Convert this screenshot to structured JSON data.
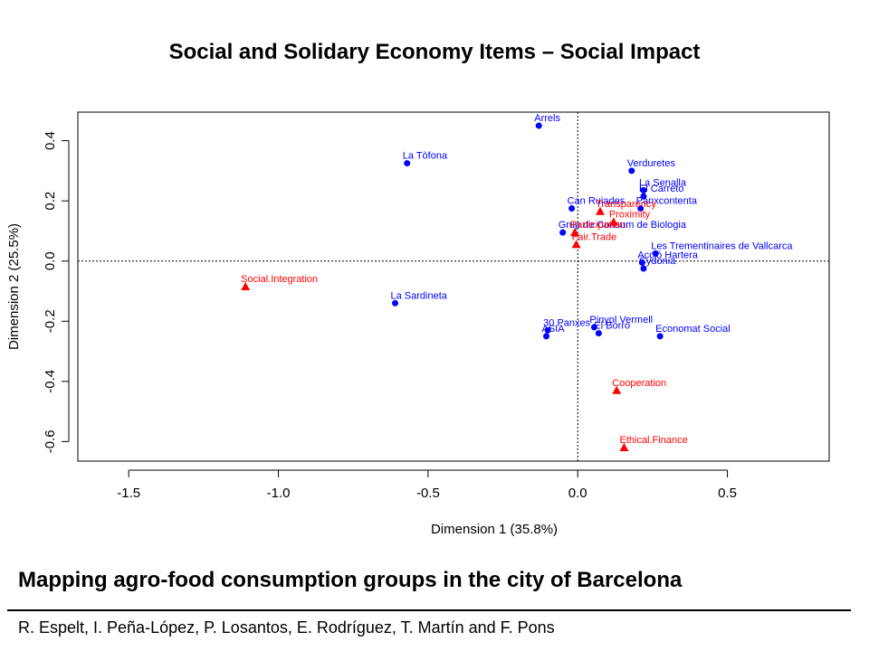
{
  "slide": {
    "title": "Social and Solidary Economy Items – Social Impact",
    "subtitle": "Mapping agro-food consumption groups in the city of Barcelona",
    "authors": "R. Espelt, I. Peña-López, P. Losantos, E. Rodríguez, T. Martín and F. Pons"
  },
  "chart_data": {
    "type": "scatter",
    "title": "",
    "xlabel": "Dimension 1 (35.8%)",
    "ylabel": "Dimension 2 (25.5%)",
    "xlim": [
      -1.67,
      0.84
    ],
    "ylim": [
      -0.665,
      0.495
    ],
    "x_ticks": [
      -1.5,
      -1.0,
      -0.5,
      0.0,
      0.5
    ],
    "y_ticks": [
      -0.6,
      -0.4,
      -0.2,
      0.0,
      0.2,
      0.4
    ],
    "x_tick_labels": [
      "-1.5",
      "-1.0",
      "-0.5",
      "0.0",
      "0.5"
    ],
    "y_tick_labels": [
      "-0.6",
      "-0.4",
      "-0.2",
      "0.0",
      "0.2",
      "0.4"
    ],
    "reference_lines": {
      "x": 0,
      "y": 0,
      "style": "dotted"
    },
    "grid": false,
    "colors": {
      "groups": "#0000ff",
      "items": "#ff0000"
    },
    "series": [
      {
        "marker": "circle",
        "color": "#0000ff",
        "points": [
          {
            "label": "Arrels",
            "x": -0.13,
            "y": 0.45
          },
          {
            "label": "La Tòfona",
            "x": -0.57,
            "y": 0.325
          },
          {
            "label": "Verduretes",
            "x": 0.18,
            "y": 0.3
          },
          {
            "label": "La Senalla",
            "x": 0.22,
            "y": 0.235
          },
          {
            "label": "El Carreto",
            "x": 0.22,
            "y": 0.215
          },
          {
            "label": "Can Ruiades",
            "x": -0.02,
            "y": 0.175
          },
          {
            "label": "Panxcontenta",
            "x": 0.21,
            "y": 0.175
          },
          {
            "label": "Grup de Consum de Biologia",
            "x": -0.05,
            "y": 0.095
          },
          {
            "label": "Les Trementinaires de Vallcarca",
            "x": 0.26,
            "y": 0.025
          },
          {
            "label": "Acció Hartera",
            "x": 0.215,
            "y": -0.005
          },
          {
            "label": "Cydonia",
            "x": 0.22,
            "y": -0.025
          },
          {
            "label": "La Sardineta",
            "x": -0.61,
            "y": -0.14
          },
          {
            "label": "30 Panxes",
            "x": -0.1,
            "y": -0.23
          },
          {
            "label": "ASIA",
            "x": -0.105,
            "y": -0.25
          },
          {
            "label": "Pinyol Vermell",
            "x": 0.055,
            "y": -0.22
          },
          {
            "label": "El Borro",
            "x": 0.07,
            "y": -0.24
          },
          {
            "label": "Economat Social",
            "x": 0.275,
            "y": -0.25
          }
        ]
      },
      {
        "marker": "triangle",
        "color": "#ff0000",
        "points": [
          {
            "label": "Transparency",
            "x": 0.075,
            "y": 0.165
          },
          {
            "label": "Proximity",
            "x": 0.12,
            "y": 0.13
          },
          {
            "label": "Participation",
            "x": -0.01,
            "y": 0.095
          },
          {
            "label": "Fair.Trade",
            "x": -0.005,
            "y": 0.055
          },
          {
            "label": "Social.Integration",
            "x": -1.11,
            "y": -0.085
          },
          {
            "label": "Cooperation",
            "x": 0.13,
            "y": -0.43
          },
          {
            "label": "Ethical.Finance",
            "x": 0.155,
            "y": -0.62
          }
        ]
      }
    ]
  }
}
